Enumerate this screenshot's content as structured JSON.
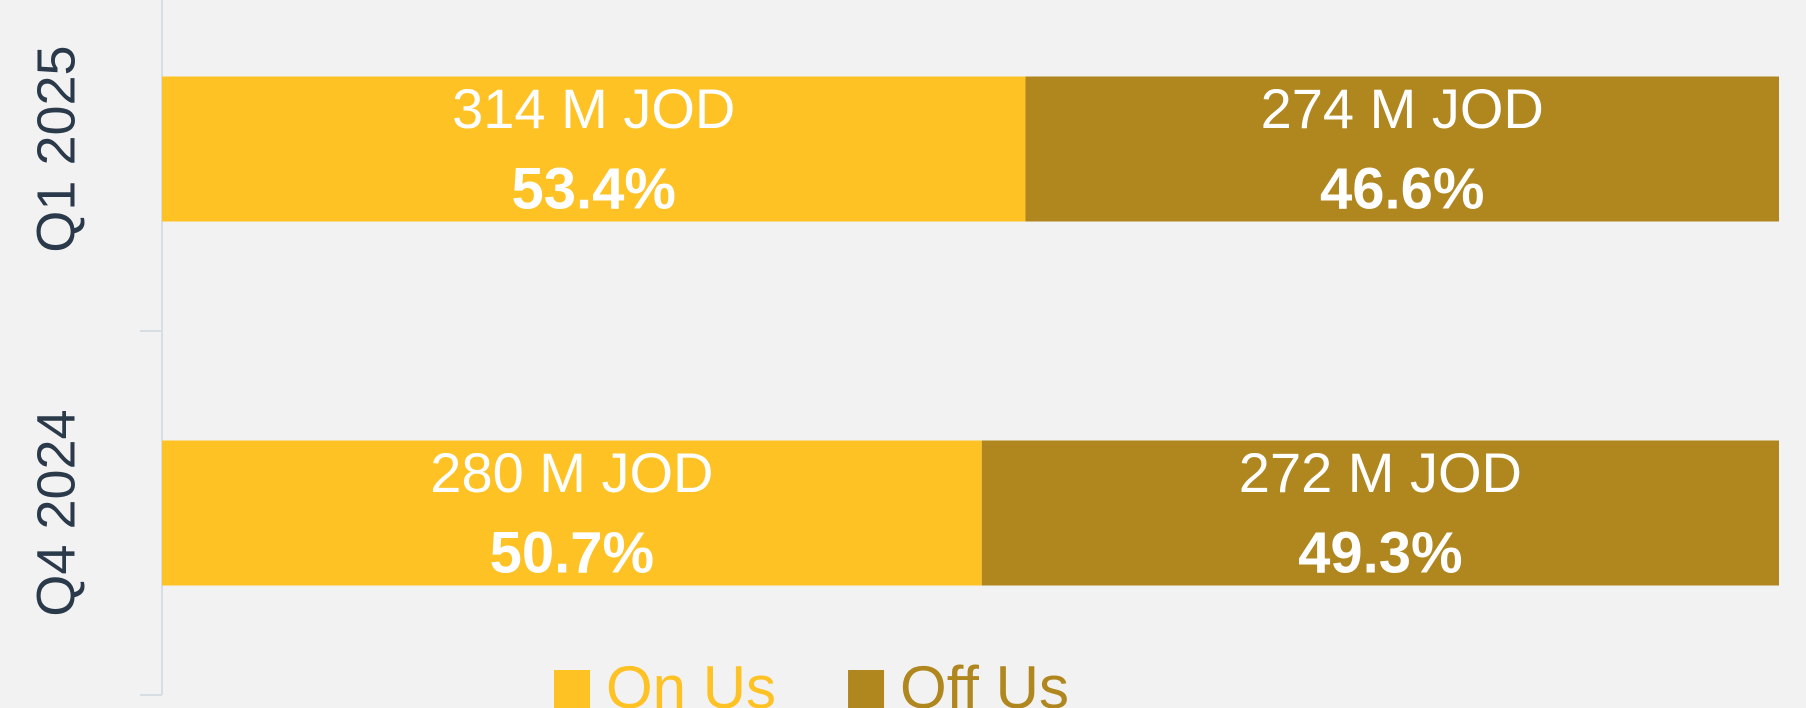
{
  "chart_data": {
    "type": "stacked-bar-horizontal",
    "categories": [
      "Q1 2025",
      "Q4 2024"
    ],
    "xlim": [
      0,
      100
    ],
    "series": [
      {
        "name": "On Us",
        "color": "#fec224",
        "values": [
          53.4,
          50.7
        ],
        "value_labels": [
          "53.4%",
          "50.7%"
        ],
        "amount_labels": [
          "314 M JOD",
          "280 M JOD"
        ]
      },
      {
        "name": "Off Us",
        "color": "#b0871f",
        "values": [
          46.6,
          49.3
        ],
        "value_labels": [
          "46.6%",
          "49.3%"
        ],
        "amount_labels": [
          "274 M JOD",
          "272 M JOD"
        ]
      }
    ],
    "legend": "bottom"
  }
}
